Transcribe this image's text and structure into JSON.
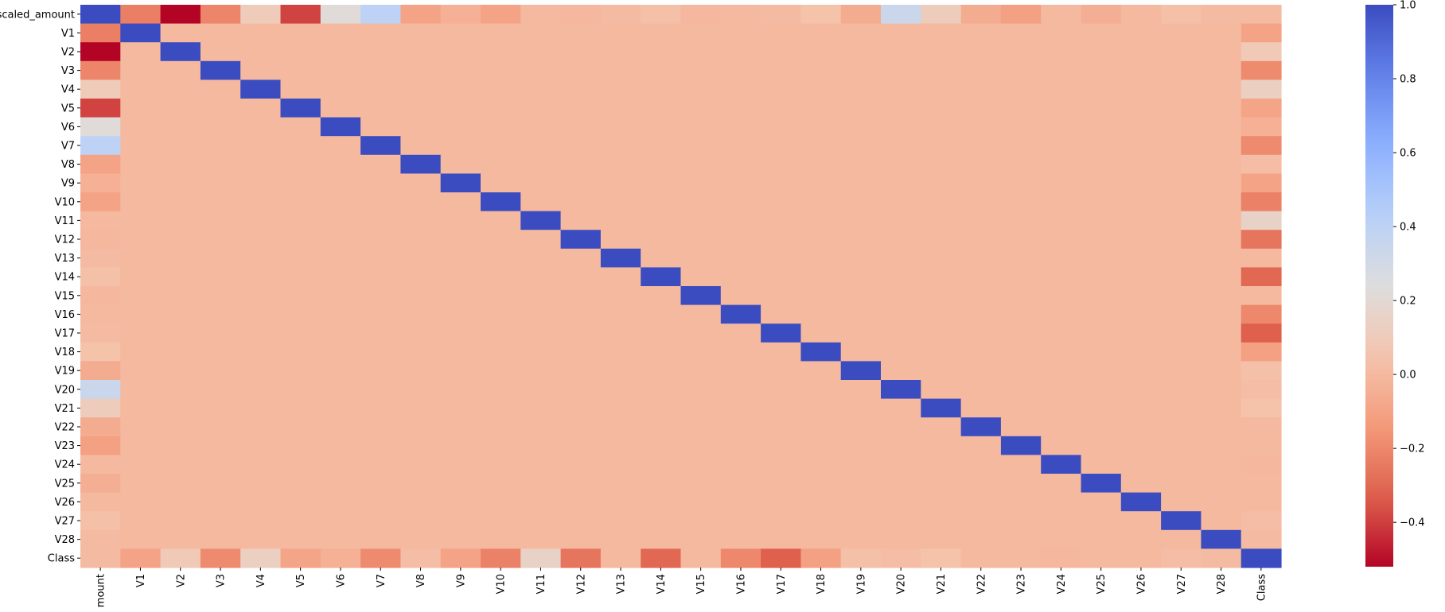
{
  "chart_data": {
    "type": "heatmap",
    "title": "",
    "xlabel": "",
    "ylabel": "",
    "row_labels": [
      "scaled_amount",
      "V1",
      "V2",
      "V3",
      "V4",
      "V5",
      "V6",
      "V7",
      "V8",
      "V9",
      "V10",
      "V11",
      "V12",
      "V13",
      "V14",
      "V15",
      "V16",
      "V17",
      "V18",
      "V19",
      "V20",
      "V21",
      "V22",
      "V23",
      "V24",
      "V25",
      "V26",
      "V27",
      "V28",
      "Class"
    ],
    "col_labels": [
      "mount",
      "V1",
      "V2",
      "V3",
      "V4",
      "V5",
      "V6",
      "V7",
      "V8",
      "V9",
      "V10",
      "V11",
      "V12",
      "V13",
      "V14",
      "V15",
      "V16",
      "V17",
      "V18",
      "V19",
      "V20",
      "V21",
      "V22",
      "V23",
      "V24",
      "V25",
      "V26",
      "V27",
      "V28",
      "Class"
    ],
    "colormap": "coolwarm",
    "vmin": -0.52,
    "vmax": 1.0,
    "colorbar_ticks": [
      "1.0",
      "0.8",
      "0.6",
      "0.4",
      "0.2",
      "0.0",
      "−0.2",
      "−0.4"
    ],
    "amount_correlations": [
      1.0,
      -0.23,
      -0.53,
      -0.21,
      0.1,
      -0.39,
      0.22,
      0.4,
      -0.1,
      -0.04,
      -0.1,
      0.0,
      -0.01,
      0.01,
      0.03,
      -0.01,
      0.0,
      0.01,
      0.04,
      -0.06,
      0.34,
      0.11,
      -0.06,
      -0.11,
      0.0,
      -0.05,
      0.0,
      0.03,
      0.01,
      0.01
    ],
    "class_correlations": [
      0.01,
      -0.1,
      0.09,
      -0.19,
      0.13,
      -0.09,
      -0.04,
      -0.19,
      0.02,
      -0.1,
      -0.22,
      0.15,
      -0.26,
      0.0,
      -0.3,
      0.0,
      -0.2,
      -0.33,
      -0.11,
      0.03,
      0.02,
      0.04,
      0.0,
      0.0,
      -0.01,
      0.0,
      0.0,
      0.02,
      0.01,
      1.0
    ],
    "off_diagonal_baseline": 0.0
  }
}
